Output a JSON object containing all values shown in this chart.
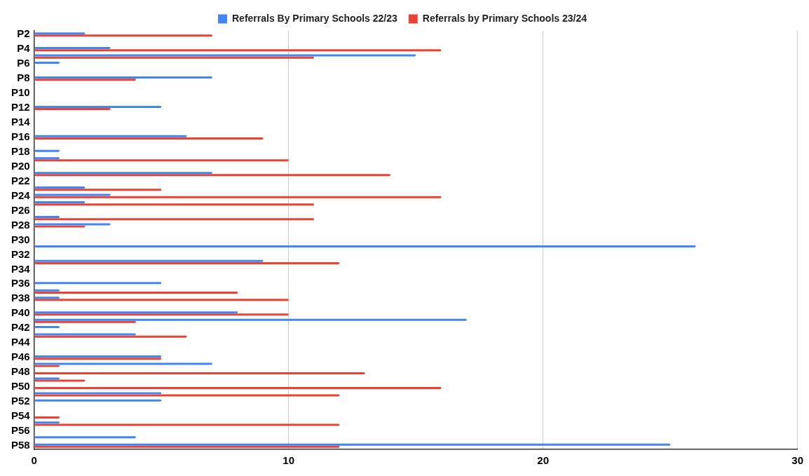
{
  "chart_data": {
    "type": "bar",
    "orientation": "horizontal",
    "categories": [
      "P2",
      null,
      "P4",
      null,
      "P6",
      null,
      "P8",
      null,
      "P10",
      null,
      "P12",
      null,
      "P14",
      null,
      "P16",
      null,
      "P18",
      null,
      "P20",
      null,
      "P22",
      null,
      "P24",
      null,
      "P26",
      null,
      "P28",
      null,
      "P30",
      null,
      "P32",
      null,
      "P34",
      null,
      "P36",
      null,
      "P38",
      null,
      "P40",
      null,
      "P42",
      null,
      "P44",
      null,
      "P46",
      null,
      "P48",
      null,
      "P50",
      null,
      "P52",
      null,
      "P54",
      null,
      "P56",
      null,
      "P58"
    ],
    "series": [
      {
        "name": "Referrals By Primary Schools 22/23",
        "color": "#4285f4",
        "values": [
          2,
          null,
          3,
          15,
          1,
          null,
          7,
          null,
          null,
          null,
          5,
          null,
          null,
          null,
          6,
          null,
          1,
          1,
          null,
          7,
          null,
          2,
          3,
          2,
          null,
          1,
          3,
          null,
          null,
          26,
          null,
          9,
          null,
          null,
          5,
          1,
          1,
          null,
          8,
          17,
          1,
          4,
          null,
          null,
          5,
          7,
          null,
          1,
          null,
          5,
          5,
          null,
          null,
          1,
          null,
          4,
          25
        ]
      },
      {
        "name": "Referrals by Primary Schools 23/24",
        "color": "#ea4335",
        "values": [
          7,
          null,
          16,
          11,
          null,
          null,
          4,
          null,
          null,
          null,
          3,
          null,
          null,
          null,
          9,
          null,
          null,
          10,
          null,
          14,
          null,
          5,
          16,
          11,
          null,
          11,
          2,
          null,
          null,
          null,
          null,
          12,
          null,
          null,
          null,
          8,
          10,
          null,
          10,
          4,
          null,
          6,
          null,
          null,
          5,
          1,
          13,
          2,
          16,
          12,
          null,
          null,
          1,
          12,
          null,
          null,
          12
        ]
      }
    ],
    "xlim": [
      0,
      30
    ],
    "xticks": [
      0,
      10,
      20,
      30
    ],
    "grid": "x",
    "legend": "top"
  }
}
